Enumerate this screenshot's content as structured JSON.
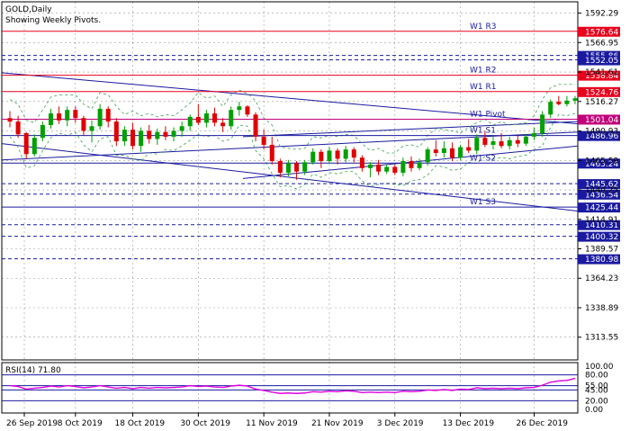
{
  "chart_data": {
    "type": "candlestick",
    "symbol": "GOLD,Daily",
    "subtitle": "Showing Weekly Pivots.",
    "ylim": [
      1294,
      1602
    ],
    "grid": true,
    "price_ticks": [
      "1592.29",
      "1566.95",
      "1541.61",
      "1516.27",
      "1490.93",
      "1465.59",
      "1440.25",
      "1414.91",
      "1389.57",
      "1364.23",
      "1338.89",
      "1313.55"
    ],
    "date_ticks": [
      "26 Sep 2019",
      "8 Oct 2019",
      "18 Oct 2019",
      "30 Oct 2019",
      "11 Nov 2019",
      "21 Nov 2019",
      "3 Dec 2019",
      "13 Dec 2019",
      "26 Dec 2019"
    ],
    "pivot_levels": [
      {
        "name": "W1 R3",
        "value": 1576.64,
        "color": "#e8001c",
        "label": "1576.64",
        "style": "solid"
      },
      {
        "name": "",
        "value": 1555.86,
        "color": "#1a1aa0",
        "label": "1555.86",
        "style": "dash"
      },
      {
        "name": "",
        "value": 1552.05,
        "color": "#1a1aa0",
        "label": "1552.05",
        "style": "dash"
      },
      {
        "name": "W1 R2",
        "value": 1538.84,
        "color": "#e8001c",
        "label": "1538.84",
        "style": "solid"
      },
      {
        "name": "W1 R1",
        "value": 1524.76,
        "color": "#e8001c",
        "label": "1524.76",
        "style": "solid"
      },
      {
        "name": "W1 Pivot",
        "value": 1501.04,
        "color": "#c0007a",
        "label": "1501.04",
        "style": "solid"
      },
      {
        "name": "W1 S1",
        "value": 1486.96,
        "color": "#1a1aa0",
        "label": "1486.96",
        "style": "solid"
      },
      {
        "name": "W1 S2",
        "value": 1463.24,
        "color": "#1a1aa0",
        "label": "1463.24",
        "style": "solid"
      },
      {
        "name": "",
        "value": 1445.62,
        "color": "#1a1aa0",
        "label": "1445.62",
        "style": "dash"
      },
      {
        "name": "",
        "value": 1436.54,
        "color": "#1a1aa0",
        "label": "1436.54",
        "style": "dash"
      },
      {
        "name": "W1 S3",
        "value": 1425.44,
        "color": "#1a1aa0",
        "label": "1425.44",
        "style": "solid"
      },
      {
        "name": "",
        "value": 1410.31,
        "color": "#1a1aa0",
        "label": "1410.31",
        "style": "dash"
      },
      {
        "name": "",
        "value": 1400.32,
        "color": "#1a1aa0",
        "label": "1400.32",
        "style": "dash"
      },
      {
        "name": "",
        "value": 1380.98,
        "color": "#1a1aa0",
        "label": "1380.98",
        "style": "dash"
      }
    ],
    "candles": [
      [
        1502,
        1508,
        1494,
        1499
      ],
      [
        1499,
        1504,
        1485,
        1488
      ],
      [
        1489,
        1490,
        1467,
        1471
      ],
      [
        1471,
        1488,
        1469,
        1485
      ],
      [
        1485,
        1499,
        1482,
        1496
      ],
      [
        1496,
        1510,
        1493,
        1506
      ],
      [
        1506,
        1512,
        1497,
        1500
      ],
      [
        1500,
        1512,
        1495,
        1509
      ],
      [
        1509,
        1512,
        1498,
        1502
      ],
      [
        1502,
        1504,
        1487,
        1491
      ],
      [
        1491,
        1500,
        1481,
        1495
      ],
      [
        1495,
        1514,
        1492,
        1510
      ],
      [
        1510,
        1512,
        1494,
        1499
      ],
      [
        1499,
        1502,
        1478,
        1482
      ],
      [
        1482,
        1495,
        1478,
        1492
      ],
      [
        1492,
        1498,
        1475,
        1478
      ],
      [
        1478,
        1494,
        1473,
        1491
      ],
      [
        1491,
        1496,
        1480,
        1484
      ],
      [
        1484,
        1493,
        1479,
        1490
      ],
      [
        1490,
        1495,
        1483,
        1486
      ],
      [
        1486,
        1494,
        1482,
        1491
      ],
      [
        1491,
        1499,
        1486,
        1495
      ],
      [
        1495,
        1505,
        1491,
        1503
      ],
      [
        1503,
        1514,
        1496,
        1498
      ],
      [
        1498,
        1509,
        1494,
        1506
      ],
      [
        1506,
        1511,
        1495,
        1498
      ],
      [
        1498,
        1502,
        1490,
        1495
      ],
      [
        1495,
        1512,
        1492,
        1509
      ],
      [
        1509,
        1516,
        1504,
        1512
      ],
      [
        1512,
        1513,
        1503,
        1505
      ],
      [
        1505,
        1507,
        1482,
        1486
      ],
      [
        1486,
        1492,
        1475,
        1479
      ],
      [
        1479,
        1486,
        1462,
        1465
      ],
      [
        1465,
        1467,
        1451,
        1455
      ],
      [
        1455,
        1466,
        1452,
        1463
      ],
      [
        1463,
        1465,
        1449,
        1456
      ],
      [
        1456,
        1466,
        1453,
        1464
      ],
      [
        1464,
        1476,
        1462,
        1473
      ],
      [
        1473,
        1475,
        1459,
        1465
      ],
      [
        1465,
        1477,
        1463,
        1474
      ],
      [
        1474,
        1476,
        1462,
        1467
      ],
      [
        1467,
        1478,
        1464,
        1475
      ],
      [
        1475,
        1477,
        1464,
        1468
      ],
      [
        1468,
        1470,
        1456,
        1459
      ],
      [
        1459,
        1464,
        1451,
        1462
      ],
      [
        1462,
        1466,
        1453,
        1456
      ],
      [
        1456,
        1462,
        1454,
        1460
      ],
      [
        1460,
        1462,
        1453,
        1455
      ],
      [
        1455,
        1468,
        1452,
        1465
      ],
      [
        1465,
        1469,
        1456,
        1459
      ],
      [
        1459,
        1467,
        1457,
        1464
      ],
      [
        1464,
        1477,
        1461,
        1475
      ],
      [
        1475,
        1483,
        1469,
        1472
      ],
      [
        1472,
        1482,
        1468,
        1476
      ],
      [
        1476,
        1481,
        1465,
        1468
      ],
      [
        1468,
        1479,
        1466,
        1477
      ],
      [
        1477,
        1484,
        1472,
        1474
      ],
      [
        1474,
        1488,
        1471,
        1485
      ],
      [
        1485,
        1491,
        1477,
        1479
      ],
      [
        1479,
        1486,
        1475,
        1482
      ],
      [
        1482,
        1489,
        1476,
        1478
      ],
      [
        1478,
        1486,
        1475,
        1483
      ],
      [
        1483,
        1487,
        1477,
        1480
      ],
      [
        1480,
        1488,
        1478,
        1486
      ],
      [
        1486,
        1494,
        1483,
        1489
      ],
      [
        1489,
        1508,
        1486,
        1505
      ],
      [
        1505,
        1518,
        1502,
        1516
      ],
      [
        1516,
        1521,
        1513,
        1514
      ],
      [
        1514,
        1521,
        1512,
        1517
      ],
      [
        1517,
        1521,
        1514,
        1519
      ]
    ],
    "rsi": {
      "label": "RSI(14) 71.80",
      "ylim": [
        0,
        100
      ],
      "ticks": [
        "100.00",
        "80.00",
        "55.00",
        "45.00",
        "20.00",
        "0.00"
      ],
      "levels": [
        80,
        55,
        45,
        20
      ],
      "values": [
        55,
        53,
        47,
        49,
        51,
        54,
        52,
        55,
        53,
        50,
        52,
        55,
        52,
        49,
        51,
        48,
        51,
        49,
        51,
        50,
        51,
        52,
        55,
        53,
        54,
        52,
        51,
        54,
        56,
        54,
        47,
        44,
        40,
        37,
        38,
        37,
        38,
        41,
        40,
        42,
        41,
        43,
        42,
        39,
        40,
        39,
        40,
        39,
        42,
        41,
        42,
        45,
        44,
        46,
        44,
        47,
        46,
        50,
        48,
        49,
        48,
        49,
        48,
        50,
        51,
        56,
        63,
        66,
        67,
        72
      ]
    }
  }
}
